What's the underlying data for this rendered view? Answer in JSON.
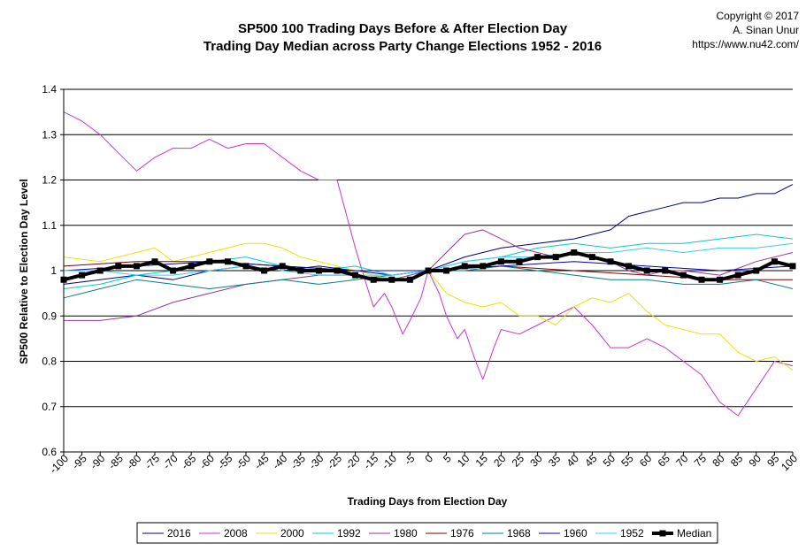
{
  "chart_data": {
    "type": "line",
    "title": "SP500 100 Trading Days Before & After Election Day",
    "subtitle": "Trading Day Median across Party Change Elections 1952 - 2016",
    "copyright": [
      "Copyright © 2017",
      "A. Sinan Unur",
      "https://www.nu42.com/"
    ],
    "xlabel": "Trading Days from Election Day",
    "ylabel": "SP500 Relative to Election Day Level",
    "xlim": [
      -100,
      100
    ],
    "ylim": [
      0.6,
      1.4
    ],
    "yticks": [
      "0.6",
      "0.7",
      "0.8",
      "0.9",
      "1",
      "1.1",
      "1.2",
      "1.3",
      "1.4"
    ],
    "xticks": [
      "-100",
      "-95",
      "-90",
      "-85",
      "-80",
      "-75",
      "-70",
      "-65",
      "-60",
      "-55",
      "-50",
      "-45",
      "-40",
      "-35",
      "-30",
      "-25",
      "-20",
      "-15",
      "-10",
      "-5",
      "0",
      "5",
      "10",
      "15",
      "20",
      "25",
      "30",
      "35",
      "40",
      "45",
      "50",
      "55",
      "60",
      "65",
      "70",
      "75",
      "80",
      "85",
      "90",
      "95",
      "100"
    ],
    "grid": "horizontal",
    "legend_position": "bottom",
    "series": [
      {
        "name": "2016",
        "color": "#000080",
        "width": 1,
        "x": [
          -100,
          -90,
          -80,
          -70,
          -60,
          -50,
          -40,
          -30,
          -20,
          -10,
          0,
          10,
          20,
          30,
          40,
          50,
          55,
          60,
          65,
          70,
          75,
          80,
          85,
          90,
          95,
          100
        ],
        "y": [
          0.97,
          0.98,
          0.99,
          0.98,
          1.0,
          1.01,
          1.0,
          1.01,
          1.0,
          0.99,
          1.0,
          1.03,
          1.05,
          1.06,
          1.07,
          1.09,
          1.12,
          1.13,
          1.14,
          1.15,
          1.15,
          1.16,
          1.16,
          1.17,
          1.17,
          1.19
        ]
      },
      {
        "name": "2008",
        "color": "#cc33cc",
        "width": 1,
        "x": [
          -100,
          -95,
          -90,
          -85,
          -80,
          -75,
          -70,
          -65,
          -60,
          -55,
          -50,
          -45,
          -40,
          -35,
          -30,
          -25,
          -20,
          -17,
          -15,
          -12,
          -10,
          -7,
          -5,
          -2,
          0,
          3,
          5,
          8,
          10,
          13,
          15,
          18,
          20,
          25,
          30,
          35,
          40,
          45,
          50,
          55,
          60,
          65,
          70,
          75,
          80,
          85,
          90,
          95,
          100
        ],
        "y": [
          1.35,
          1.33,
          1.3,
          1.26,
          1.22,
          1.25,
          1.27,
          1.27,
          1.29,
          1.27,
          1.28,
          1.28,
          1.25,
          1.22,
          1.2,
          1.2,
          1.05,
          0.97,
          0.92,
          0.95,
          0.92,
          0.86,
          0.89,
          0.94,
          1.0,
          0.95,
          0.9,
          0.85,
          0.87,
          0.8,
          0.76,
          0.83,
          0.87,
          0.86,
          0.88,
          0.9,
          0.92,
          0.88,
          0.83,
          0.83,
          0.85,
          0.83,
          0.8,
          0.77,
          0.71,
          0.68,
          0.74,
          0.8,
          0.79
        ]
      },
      {
        "name": "2000",
        "color": "#e6e600",
        "width": 1,
        "x": [
          -100,
          -90,
          -80,
          -75,
          -70,
          -60,
          -50,
          -45,
          -40,
          -35,
          -30,
          -25,
          -20,
          -15,
          -10,
          -5,
          0,
          5,
          10,
          15,
          20,
          25,
          30,
          35,
          40,
          45,
          50,
          55,
          60,
          65,
          70,
          75,
          80,
          85,
          90,
          95,
          100
        ],
        "y": [
          1.03,
          1.02,
          1.04,
          1.05,
          1.02,
          1.04,
          1.06,
          1.06,
          1.05,
          1.03,
          1.02,
          1.01,
          1.0,
          0.99,
          0.98,
          0.99,
          1.0,
          0.95,
          0.93,
          0.92,
          0.93,
          0.9,
          0.9,
          0.88,
          0.92,
          0.94,
          0.93,
          0.95,
          0.91,
          0.88,
          0.87,
          0.86,
          0.86,
          0.82,
          0.8,
          0.81,
          0.78
        ]
      },
      {
        "name": "1992",
        "color": "#00cccc",
        "width": 1,
        "x": [
          -100,
          -90,
          -80,
          -70,
          -60,
          -50,
          -40,
          -30,
          -20,
          -10,
          0,
          10,
          20,
          30,
          40,
          50,
          60,
          70,
          80,
          90,
          100
        ],
        "y": [
          0.96,
          0.97,
          0.99,
          1.0,
          1.02,
          1.03,
          1.01,
          1.0,
          1.01,
          0.99,
          1.0,
          1.02,
          1.03,
          1.05,
          1.06,
          1.05,
          1.06,
          1.06,
          1.07,
          1.08,
          1.07
        ]
      },
      {
        "name": "1980",
        "color": "#993399",
        "width": 1,
        "x": [
          -100,
          -90,
          -80,
          -70,
          -60,
          -50,
          -40,
          -30,
          -20,
          -10,
          0,
          5,
          10,
          15,
          20,
          25,
          30,
          35,
          40,
          45,
          50,
          55,
          60,
          65,
          70,
          80,
          90,
          100
        ],
        "y": [
          0.89,
          0.89,
          0.9,
          0.93,
          0.95,
          0.97,
          0.98,
          0.99,
          0.99,
          0.98,
          1.0,
          1.04,
          1.08,
          1.09,
          1.07,
          1.05,
          1.04,
          1.03,
          1.04,
          1.03,
          1.02,
          1.0,
          0.99,
          1.0,
          1.0,
          0.99,
          1.02,
          1.04
        ]
      },
      {
        "name": "1976",
        "color": "#800000",
        "width": 1,
        "x": [
          -100,
          -80,
          -60,
          -40,
          -20,
          0,
          20,
          40,
          60,
          80,
          100
        ],
        "y": [
          1.01,
          1.02,
          1.02,
          1.01,
          1.0,
          1.0,
          1.01,
          1.0,
          0.99,
          0.98,
          0.98
        ]
      },
      {
        "name": "1968",
        "color": "#008080",
        "width": 1,
        "x": [
          -100,
          -90,
          -80,
          -70,
          -60,
          -50,
          -40,
          -30,
          -20,
          -10,
          0,
          10,
          20,
          30,
          40,
          50,
          60,
          70,
          80,
          90,
          100
        ],
        "y": [
          0.94,
          0.96,
          0.98,
          0.97,
          0.96,
          0.97,
          0.98,
          0.97,
          0.98,
          0.99,
          1.0,
          1.0,
          1.01,
          1.0,
          0.99,
          0.98,
          0.98,
          0.97,
          0.97,
          0.98,
          0.96
        ]
      },
      {
        "name": "1960",
        "color": "#0000b3",
        "width": 1,
        "x": [
          -100,
          -80,
          -60,
          -40,
          -20,
          0,
          20,
          40,
          60,
          80,
          100
        ],
        "y": [
          1.0,
          1.01,
          1.02,
          1.01,
          1.0,
          1.0,
          1.01,
          1.02,
          1.01,
          1.0,
          1.01
        ]
      },
      {
        "name": "1952",
        "color": "#33ccff",
        "width": 1,
        "x": [
          -100,
          -90,
          -80,
          -70,
          -60,
          -50,
          -40,
          -30,
          -20,
          -10,
          0,
          10,
          20,
          30,
          40,
          50,
          60,
          70,
          80,
          90,
          100
        ],
        "y": [
          1.0,
          1.0,
          0.99,
          0.99,
          1.0,
          1.01,
          1.0,
          0.99,
          0.99,
          0.99,
          1.0,
          1.02,
          1.03,
          1.03,
          1.04,
          1.04,
          1.05,
          1.04,
          1.05,
          1.05,
          1.06
        ]
      },
      {
        "name": "Median",
        "color": "#000000",
        "width": 4,
        "marker": "square",
        "x": [
          -100,
          -95,
          -90,
          -85,
          -80,
          -75,
          -70,
          -65,
          -60,
          -55,
          -50,
          -45,
          -40,
          -35,
          -30,
          -25,
          -20,
          -15,
          -10,
          -5,
          0,
          5,
          10,
          15,
          20,
          25,
          30,
          35,
          40,
          45,
          50,
          55,
          60,
          65,
          70,
          75,
          80,
          85,
          90,
          95,
          100
        ],
        "y": [
          0.98,
          0.99,
          1.0,
          1.01,
          1.01,
          1.02,
          1.0,
          1.01,
          1.02,
          1.02,
          1.01,
          1.0,
          1.01,
          1.0,
          1.0,
          1.0,
          0.99,
          0.98,
          0.98,
          0.98,
          1.0,
          1.0,
          1.01,
          1.01,
          1.02,
          1.02,
          1.03,
          1.03,
          1.04,
          1.03,
          1.02,
          1.01,
          1.0,
          1.0,
          0.99,
          0.98,
          0.98,
          0.99,
          1.0,
          1.02,
          1.01
        ]
      }
    ]
  }
}
